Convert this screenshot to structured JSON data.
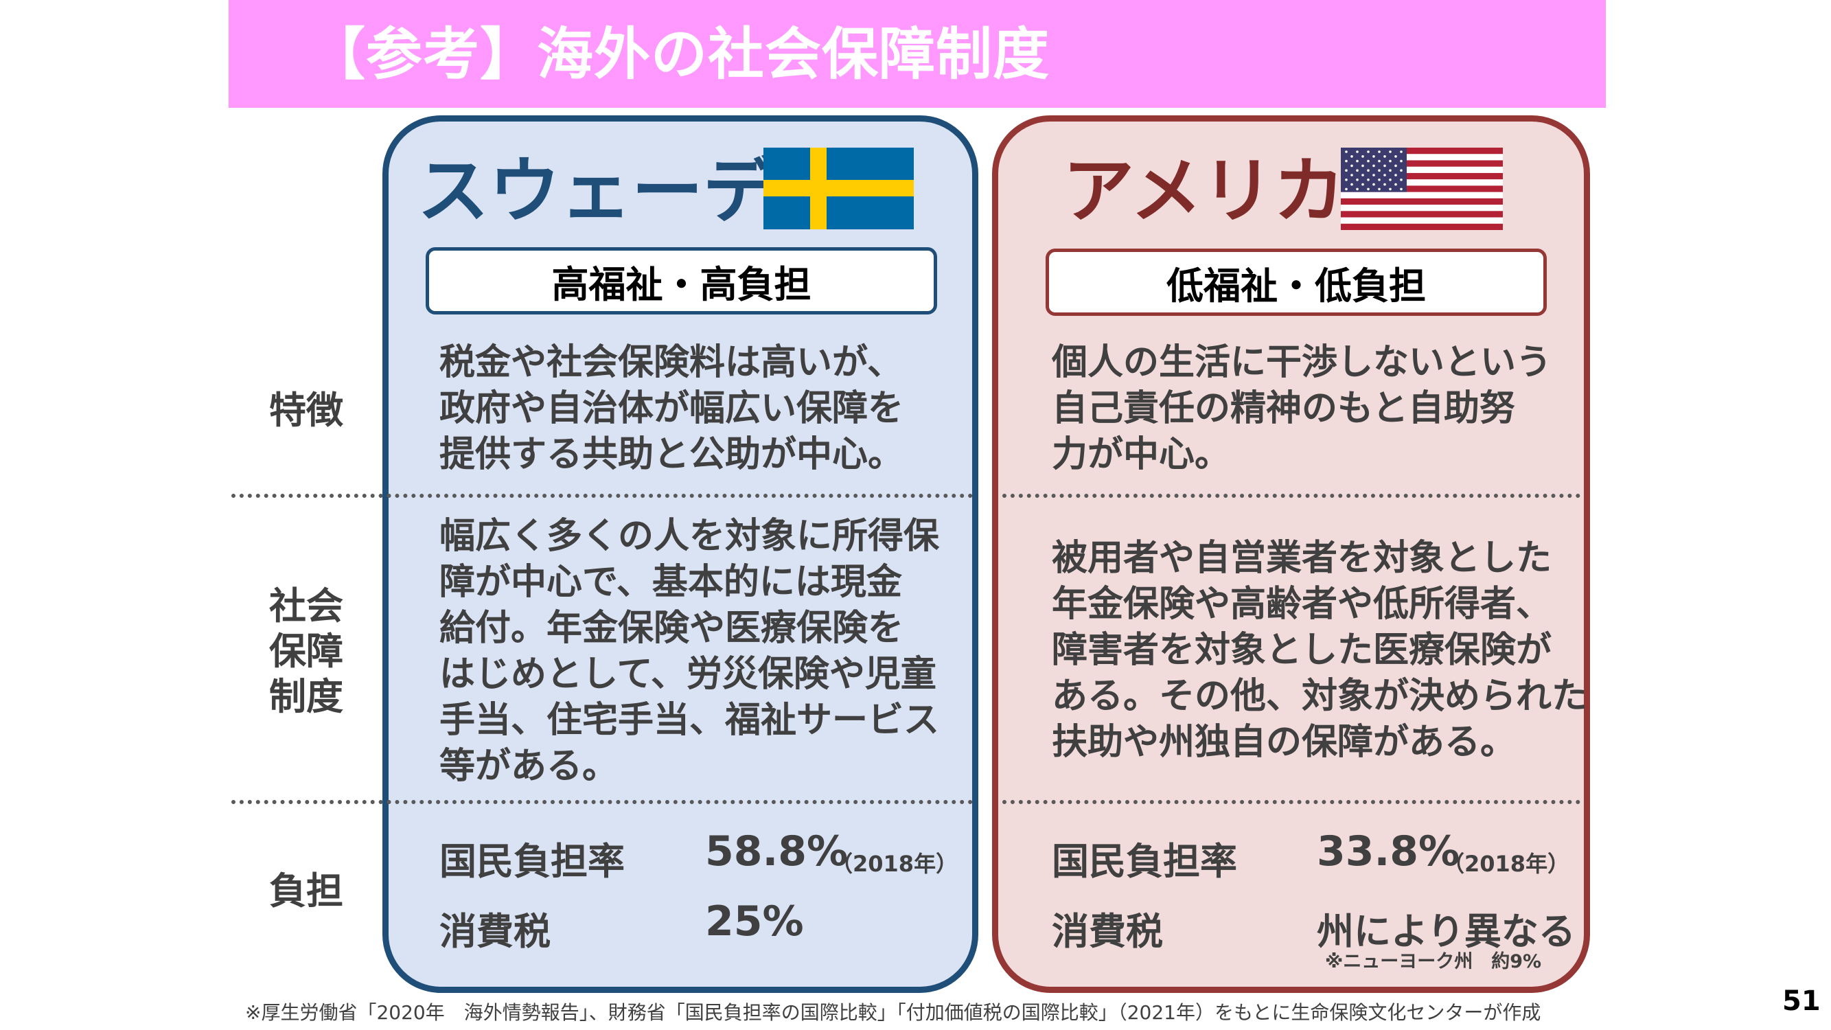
{
  "title": "【参考】海外の社会保障制度",
  "row_labels": {
    "features": "特徴",
    "system": "社会保障制度",
    "burden": "負担"
  },
  "sweden": {
    "name": "スウェーデン",
    "label": "高福祉・高負担",
    "features_lines": [
      "税金や社会保険料は高いが、",
      "政府や自治体が幅広い保障を",
      "提供する共助と公助が中心。"
    ],
    "system_lines": [
      "幅広く多くの人を対象に所得保",
      "障が中心で、基本的には現金",
      "給付。年金保険や医療保険を",
      "はじめとして、労災保険や児童",
      "手当、住宅手当、福祉サービス",
      "等がある。"
    ],
    "burden_rate_label": "国民負担率",
    "burden_rate_value": "58.8%",
    "burden_rate_year": "（2018年）",
    "tax_label": "消費税",
    "tax_value": "25%"
  },
  "usa": {
    "name": "アメリカ",
    "label": "低福祉・低負担",
    "features_lines": [
      "個人の生活に干渉しないという",
      "自己責任の精神のもと自助努",
      "力が中心。"
    ],
    "system_lines": [
      "被用者や自営業者を対象とした",
      "年金保険や高齢者や低所得者、",
      "障害者を対象とした医療保険が",
      "ある。その他、対象が決められた",
      "扶助や州独自の保障がある。"
    ],
    "burden_rate_label": "国民負担率",
    "burden_rate_value": "33.8%",
    "burden_rate_year": "（2018年）",
    "tax_label": "消費税",
    "tax_value": "州により異なる",
    "tax_note": "※ニューヨーク州　約9%"
  },
  "footnote": "※厚生労働省「2020年　海外情勢報告」、財務省「国民負担率の国際比較」「付加価値税の国際比較」（2021年）をもとに生命保険文化センターが作成",
  "page_number": "51",
  "colors": {
    "banner": "#ff99ff",
    "sweden_border": "#1f4e79",
    "sweden_fill": "#dae3f3",
    "usa_border": "#953735",
    "usa_fill": "#f2dcdb"
  },
  "icons": {
    "sweden_flag": "sweden-flag-icon",
    "usa_flag": "usa-flag-icon"
  }
}
